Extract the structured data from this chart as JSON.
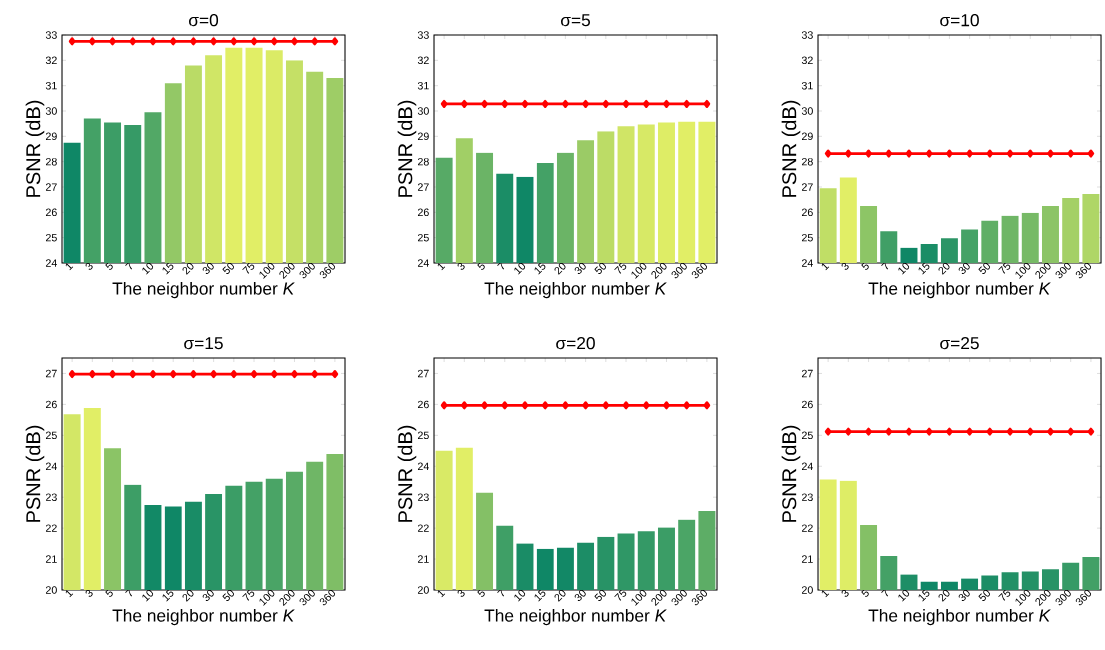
{
  "chart_data": [
    {
      "type": "bar",
      "title": "σ=0",
      "xlabel": "The neighbor number *K*",
      "ylabel": "PSNR (dB)",
      "categories": [
        "1",
        "3",
        "5",
        "7",
        "10",
        "15",
        "20",
        "30",
        "50",
        "75",
        "100",
        "200",
        "300",
        "360"
      ],
      "ylim": [
        24,
        33
      ],
      "yticks": [
        24,
        25,
        26,
        27,
        28,
        29,
        30,
        31,
        32,
        33
      ],
      "series": [
        {
          "values": [
            28.75,
            29.7,
            29.55,
            29.45,
            29.95,
            31.1,
            31.8,
            32.2,
            32.5,
            32.5,
            32.4,
            32.0,
            31.55,
            31.3
          ],
          "colors": [
            "#0f8766",
            "#44a166",
            "#3c9d66",
            "#369a66",
            "#52a866",
            "#93c866",
            "#badb66",
            "#d0e666",
            "#e1ee66",
            "#e1ee66",
            "#dbeb66",
            "#c5e066",
            "#acd466",
            "#9ecd66"
          ]
        },
        {
          "type": "line",
          "color": "#ff0000",
          "marker": "diamond",
          "values": [
            32.75,
            32.75,
            32.75,
            32.75,
            32.75,
            32.75,
            32.75,
            32.75,
            32.75,
            32.75,
            32.75,
            32.75,
            32.75,
            32.75
          ]
        }
      ]
    },
    {
      "type": "bar",
      "title": "σ=5",
      "xlabel": "The neighbor number *K*",
      "ylabel": "PSNR (dB)",
      "categories": [
        "1",
        "3",
        "5",
        "7",
        "10",
        "15",
        "20",
        "30",
        "50",
        "75",
        "100",
        "200",
        "300",
        "360"
      ],
      "ylim": [
        24,
        33
      ],
      "yticks": [
        24,
        25,
        26,
        27,
        28,
        29,
        30,
        31,
        32,
        33
      ],
      "series": [
        {
          "values": [
            28.15,
            28.92,
            28.35,
            27.52,
            27.4,
            27.95,
            28.35,
            28.85,
            29.2,
            29.4,
            29.47,
            29.55,
            29.58,
            29.58
          ],
          "colors": [
            "#57aa66",
            "#a1cf66",
            "#6bb466",
            "#1b8d66",
            "#0f8766",
            "#44a166",
            "#6bb466",
            "#9bcb66",
            "#bcdc66",
            "#d0e566",
            "#d7e966",
            "#deed66",
            "#e1ee66",
            "#e1ee66"
          ]
        },
        {
          "type": "line",
          "color": "#ff0000",
          "marker": "diamond",
          "values": [
            30.28,
            30.28,
            30.28,
            30.28,
            30.28,
            30.28,
            30.28,
            30.28,
            30.28,
            30.28,
            30.28,
            30.28,
            30.28,
            30.28
          ]
        }
      ]
    },
    {
      "type": "bar",
      "title": "σ=10",
      "xlabel": "The neighbor number *K*",
      "ylabel": "PSNR (dB)",
      "categories": [
        "1",
        "3",
        "5",
        "7",
        "10",
        "15",
        "20",
        "30",
        "50",
        "75",
        "100",
        "200",
        "300",
        "360"
      ],
      "ylim": [
        24,
        33
      ],
      "yticks": [
        24,
        25,
        26,
        27,
        28,
        29,
        30,
        31,
        32,
        33
      ],
      "series": [
        {
          "values": [
            26.95,
            27.38,
            26.25,
            25.25,
            24.6,
            24.75,
            24.98,
            25.32,
            25.67,
            25.87,
            25.98,
            26.25,
            26.57,
            26.72
          ],
          "colors": [
            "#c0de66",
            "#e1ee66",
            "#8dc566",
            "#409f66",
            "#0f8766",
            "#1a8d66",
            "#2c9566",
            "#45a266",
            "#60af66",
            "#6fb666",
            "#77ba66",
            "#8cc466",
            "#a4d066",
            "#afd666"
          ]
        },
        {
          "type": "line",
          "color": "#ff0000",
          "marker": "diamond",
          "values": [
            28.32,
            28.32,
            28.32,
            28.32,
            28.32,
            28.32,
            28.32,
            28.32,
            28.32,
            28.32,
            28.32,
            28.32,
            28.32,
            28.32
          ]
        }
      ]
    },
    {
      "type": "bar",
      "title": "σ=15",
      "xlabel": "The neighbor number *K*",
      "ylabel": "PSNR (dB)",
      "categories": [
        "1",
        "3",
        "5",
        "7",
        "10",
        "15",
        "20",
        "30",
        "50",
        "75",
        "100",
        "200",
        "300",
        "360"
      ],
      "ylim": [
        20,
        27.5
      ],
      "yticks": [
        20,
        21,
        22,
        23,
        24,
        25,
        26,
        27
      ],
      "series": [
        {
          "values": [
            25.68,
            25.88,
            24.58,
            23.4,
            22.75,
            22.7,
            22.85,
            23.1,
            23.37,
            23.5,
            23.6,
            23.82,
            24.15,
            24.4
          ],
          "colors": [
            "#d3e766",
            "#e1ee66",
            "#8bc466",
            "#3d9e66",
            "#128966",
            "#0f8766",
            "#198c66",
            "#299466",
            "#3b9d66",
            "#44a166",
            "#4aa466",
            "#59ab66",
            "#6fb666",
            "#7fbe66"
          ]
        },
        {
          "type": "line",
          "color": "#ff0000",
          "marker": "diamond",
          "values": [
            26.98,
            26.98,
            26.98,
            26.98,
            26.98,
            26.98,
            26.98,
            26.98,
            26.98,
            26.98,
            26.98,
            26.98,
            26.98,
            26.98
          ]
        }
      ]
    },
    {
      "type": "bar",
      "title": "σ=20",
      "xlabel": "The neighbor number *K*",
      "ylabel": "PSNR (dB)",
      "categories": [
        "1",
        "3",
        "5",
        "7",
        "10",
        "15",
        "20",
        "30",
        "50",
        "75",
        "100",
        "200",
        "300",
        "360"
      ],
      "ylim": [
        20,
        27.5
      ],
      "yticks": [
        20,
        21,
        22,
        23,
        24,
        25,
        26,
        27
      ],
      "series": [
        {
          "values": [
            24.5,
            24.6,
            23.15,
            22.08,
            21.5,
            21.33,
            21.37,
            21.53,
            21.72,
            21.83,
            21.9,
            22.02,
            22.27,
            22.55
          ],
          "colors": [
            "#d9ea66",
            "#e1ee66",
            "#84c066",
            "#3f9f66",
            "#1a8c66",
            "#0f8766",
            "#128866",
            "#1c8d66",
            "#289366",
            "#2f9766",
            "#349966",
            "#3b9d66",
            "#4ba566",
            "#5dad66"
          ]
        },
        {
          "type": "line",
          "color": "#ff0000",
          "marker": "diamond",
          "values": [
            25.97,
            25.97,
            25.97,
            25.97,
            25.97,
            25.97,
            25.97,
            25.97,
            25.97,
            25.97,
            25.97,
            25.97,
            25.97,
            25.97
          ]
        }
      ]
    },
    {
      "type": "bar",
      "title": "σ=25",
      "xlabel": "The neighbor number *K*",
      "ylabel": "PSNR (dB)",
      "categories": [
        "1",
        "3",
        "5",
        "7",
        "10",
        "15",
        "20",
        "30",
        "50",
        "75",
        "100",
        "200",
        "300",
        "360"
      ],
      "ylim": [
        20,
        27.5
      ],
      "yticks": [
        20,
        21,
        22,
        23,
        24,
        25,
        26,
        27
      ],
      "series": [
        {
          "values": [
            23.57,
            23.53,
            22.1,
            21.1,
            20.5,
            20.27,
            20.27,
            20.37,
            20.47,
            20.57,
            20.6,
            20.67,
            20.88,
            21.07
          ],
          "colors": [
            "#e1ee66",
            "#deed66",
            "#84c066",
            "#44a166",
            "#1e8e66",
            "#0f8766",
            "#0f8766",
            "#158a66",
            "#1c8d66",
            "#229066",
            "#249166",
            "#289366",
            "#369a66",
            "#42a066"
          ]
        },
        {
          "type": "line",
          "color": "#ff0000",
          "marker": "diamond",
          "values": [
            25.12,
            25.12,
            25.12,
            25.12,
            25.12,
            25.12,
            25.12,
            25.12,
            25.12,
            25.12,
            25.12,
            25.12,
            25.12,
            25.12
          ]
        }
      ]
    }
  ]
}
